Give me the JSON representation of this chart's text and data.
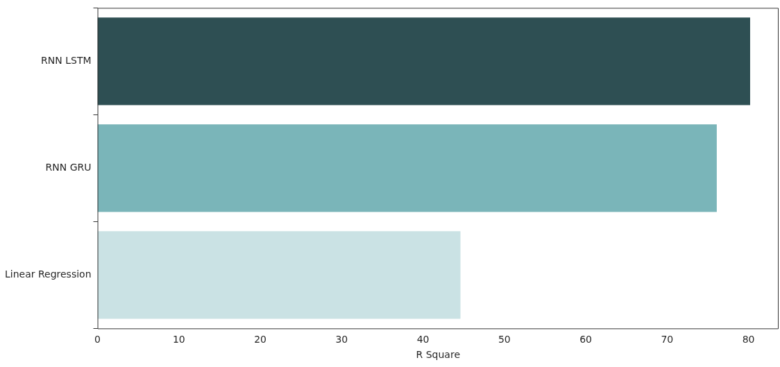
{
  "chart_data": {
    "type": "bar",
    "orientation": "horizontal",
    "xlabel": "R Square",
    "categories": [
      "RNN LSTM",
      "RNN GRU",
      "Linear Regression"
    ],
    "values": [
      80.2,
      76.1,
      44.6
    ],
    "colors": [
      "#2e4f53",
      "#7ab5b9",
      "#cae2e4"
    ],
    "xlim": [
      0,
      83.7
    ],
    "xticks": [
      0,
      10,
      20,
      30,
      40,
      50,
      60,
      70,
      80
    ],
    "grid": false,
    "legend": false
  }
}
